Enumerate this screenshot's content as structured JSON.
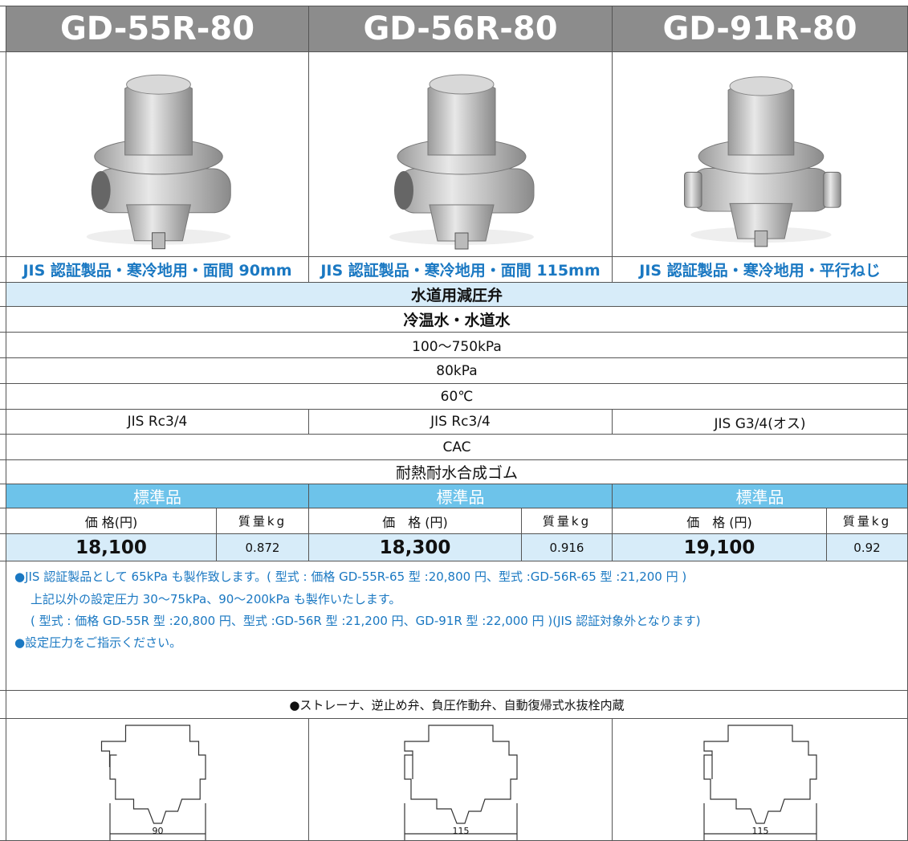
{
  "products": [
    {
      "model": "GD-55R-80",
      "subtitle": "JIS 認証製品・寒冷地用・面間 90mm",
      "connection": "JIS Rc3/4",
      "category": "標準品",
      "price_header": "価 格(円)",
      "weight_header": "質量kg",
      "price": "18,100",
      "weight": "0.872",
      "dimension": "90"
    },
    {
      "model": "GD-56R-80",
      "subtitle": "JIS 認証製品・寒冷地用・面間 115mm",
      "connection": "JIS Rc3/4",
      "category": "標準品",
      "price_header": "価　格 (円)",
      "weight_header": "質量kg",
      "price": "18,300",
      "weight": "0.916",
      "dimension": "115"
    },
    {
      "model": "GD-91R-80",
      "subtitle": "JIS 認証製品・寒冷地用・平行ねじ",
      "connection": "JIS G3/4(オス)",
      "category": "標準品",
      "price_header": "価　格 (円)",
      "weight_header": "質量kg",
      "price": "19,100",
      "weight": "0.92",
      "dimension": "115"
    }
  ],
  "common_rows_top": [
    "水道用減圧弁",
    "冷温水・水道水",
    "100〜750kPa",
    "80kPa",
    "60℃"
  ],
  "common_rows_bottom": [
    "CAC",
    "耐熱耐水合成ゴム"
  ],
  "notes": [
    "●JIS 認証製品として 65kPa も製作致します。( 型式 : 価格 GD-55R-65 型 :20,800 円、型式 :GD-56R-65 型 :21,200 円 )",
    "上記以外の設定圧力 30〜75kPa、90〜200kPa も製作いたします。",
    "( 型式 : 価格 GD-55R 型 :20,800 円、型式 :GD-56R 型 :21,200 円、GD-91R 型 :22,000 円 )(JIS 認証対象外となります)",
    "●設定圧力をご指示ください。"
  ],
  "feature": "●ストレーナ、逆止め弁、負圧作動弁、自動復帰式水抜栓内蔵"
}
